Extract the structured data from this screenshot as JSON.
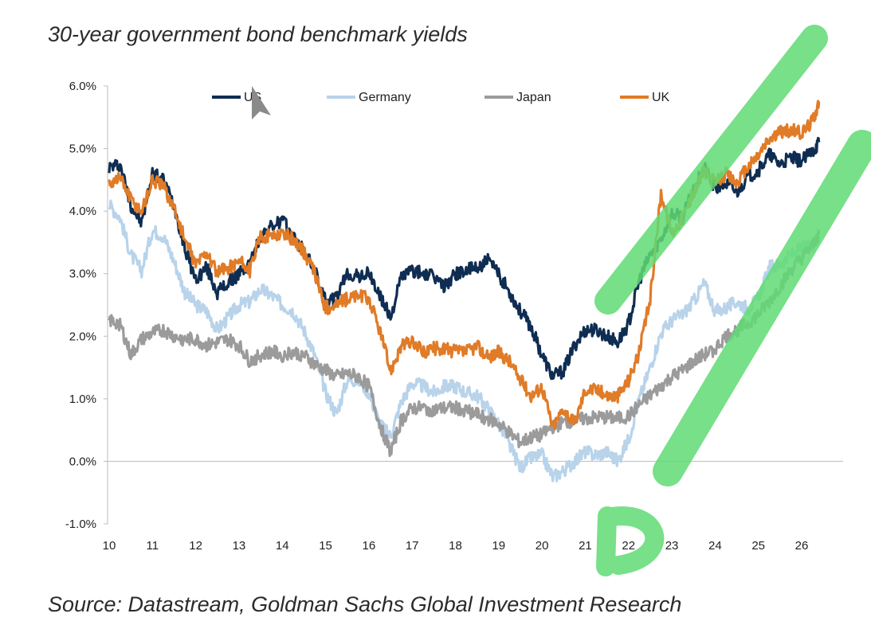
{
  "title": "30-year government bond benchmark yields",
  "source": "Source: Datastream, Goldman Sachs Global Investment Research",
  "chart_data": {
    "type": "line",
    "title": "30-year government bond benchmark yields",
    "xlabel": "",
    "ylabel": "",
    "xlim": [
      10,
      26.6
    ],
    "ylim": [
      -1.0,
      6.0
    ],
    "x_ticks": [
      "10",
      "11",
      "12",
      "13",
      "14",
      "15",
      "16",
      "17",
      "18",
      "19",
      "20",
      "21",
      "22",
      "23",
      "24",
      "25",
      "26"
    ],
    "y_ticks": [
      "6.0%",
      "5.0%",
      "4.0%",
      "3.0%",
      "2.0%",
      "1.0%",
      "0.0%",
      "-1.0%"
    ],
    "y_tick_values": [
      6,
      5,
      4,
      3,
      2,
      1,
      0,
      -1
    ],
    "grid": false,
    "legend_position": "top",
    "series": [
      {
        "name": "US",
        "color": "#0f2d52",
        "points": [
          [
            10,
            4.7
          ],
          [
            10.25,
            4.75
          ],
          [
            10.5,
            4.1
          ],
          [
            10.75,
            3.8
          ],
          [
            11,
            4.6
          ],
          [
            11.25,
            4.5
          ],
          [
            11.5,
            4.1
          ],
          [
            11.75,
            3.4
          ],
          [
            12,
            2.9
          ],
          [
            12.25,
            3.1
          ],
          [
            12.5,
            2.7
          ],
          [
            12.75,
            2.85
          ],
          [
            13,
            3.0
          ],
          [
            13.25,
            3.15
          ],
          [
            13.5,
            3.6
          ],
          [
            13.75,
            3.75
          ],
          [
            14,
            3.85
          ],
          [
            14.25,
            3.6
          ],
          [
            14.5,
            3.35
          ],
          [
            14.75,
            3.05
          ],
          [
            15,
            2.55
          ],
          [
            15.25,
            2.6
          ],
          [
            15.5,
            3.0
          ],
          [
            15.75,
            2.95
          ],
          [
            16,
            3.0
          ],
          [
            16.25,
            2.65
          ],
          [
            16.5,
            2.3
          ],
          [
            16.75,
            2.95
          ],
          [
            17,
            3.05
          ],
          [
            17.25,
            3.0
          ],
          [
            17.5,
            2.95
          ],
          [
            17.75,
            2.8
          ],
          [
            18,
            3.0
          ],
          [
            18.25,
            3.05
          ],
          [
            18.5,
            3.1
          ],
          [
            18.75,
            3.2
          ],
          [
            19,
            3.0
          ],
          [
            19.25,
            2.7
          ],
          [
            19.5,
            2.4
          ],
          [
            19.75,
            2.15
          ],
          [
            20,
            1.7
          ],
          [
            20.25,
            1.35
          ],
          [
            20.5,
            1.45
          ],
          [
            20.75,
            1.85
          ],
          [
            21,
            2.1
          ],
          [
            21.25,
            2.1
          ],
          [
            21.5,
            2.0
          ],
          [
            21.75,
            1.9
          ],
          [
            22,
            2.2
          ],
          [
            22.25,
            2.9
          ],
          [
            22.5,
            3.3
          ],
          [
            22.75,
            3.55
          ],
          [
            23,
            3.95
          ],
          [
            23.25,
            3.9
          ],
          [
            23.5,
            4.35
          ],
          [
            23.75,
            4.7
          ],
          [
            24,
            4.35
          ],
          [
            24.25,
            4.45
          ],
          [
            24.5,
            4.3
          ],
          [
            24.75,
            4.55
          ],
          [
            25,
            4.65
          ],
          [
            25.25,
            4.9
          ],
          [
            25.5,
            4.75
          ],
          [
            25.75,
            4.85
          ],
          [
            26,
            4.8
          ],
          [
            26.25,
            4.95
          ],
          [
            26.4,
            5.1
          ]
        ]
      },
      {
        "name": "Germany",
        "color": "#b8d3ea",
        "points": [
          [
            10,
            4.1
          ],
          [
            10.25,
            3.9
          ],
          [
            10.5,
            3.3
          ],
          [
            10.75,
            3.05
          ],
          [
            11,
            3.7
          ],
          [
            11.25,
            3.6
          ],
          [
            11.5,
            3.2
          ],
          [
            11.75,
            2.7
          ],
          [
            12,
            2.5
          ],
          [
            12.25,
            2.4
          ],
          [
            12.5,
            2.1
          ],
          [
            12.75,
            2.3
          ],
          [
            13,
            2.5
          ],
          [
            13.25,
            2.55
          ],
          [
            13.5,
            2.75
          ],
          [
            13.75,
            2.65
          ],
          [
            14,
            2.5
          ],
          [
            14.25,
            2.4
          ],
          [
            14.5,
            2.1
          ],
          [
            14.75,
            1.7
          ],
          [
            15,
            1.1
          ],
          [
            15.25,
            0.75
          ],
          [
            15.5,
            1.3
          ],
          [
            15.75,
            1.3
          ],
          [
            16,
            1.1
          ],
          [
            16.25,
            0.6
          ],
          [
            16.5,
            0.4
          ],
          [
            16.75,
            0.95
          ],
          [
            17,
            1.25
          ],
          [
            17.25,
            1.2
          ],
          [
            17.5,
            1.1
          ],
          [
            17.75,
            1.2
          ],
          [
            18,
            1.2
          ],
          [
            18.25,
            1.1
          ],
          [
            18.5,
            1.05
          ],
          [
            18.75,
            0.85
          ],
          [
            19,
            0.6
          ],
          [
            19.25,
            0.25
          ],
          [
            19.5,
            -0.1
          ],
          [
            19.75,
            0.05
          ],
          [
            20,
            0.1
          ],
          [
            20.25,
            -0.25
          ],
          [
            20.5,
            -0.15
          ],
          [
            20.75,
            0.0
          ],
          [
            21,
            0.15
          ],
          [
            21.25,
            0.1
          ],
          [
            21.5,
            0.15
          ],
          [
            21.75,
            0.0
          ],
          [
            22,
            0.35
          ],
          [
            22.25,
            1.0
          ],
          [
            22.5,
            1.5
          ],
          [
            22.75,
            2.05
          ],
          [
            23,
            2.25
          ],
          [
            23.25,
            2.35
          ],
          [
            23.5,
            2.55
          ],
          [
            23.75,
            2.85
          ],
          [
            24,
            2.4
          ],
          [
            24.25,
            2.45
          ],
          [
            24.5,
            2.55
          ],
          [
            24.75,
            2.45
          ],
          [
            25,
            2.6
          ],
          [
            25.25,
            3.1
          ],
          [
            25.5,
            3.15
          ],
          [
            25.75,
            3.3
          ],
          [
            26,
            3.4
          ],
          [
            26.25,
            3.45
          ],
          [
            26.4,
            3.6
          ]
        ]
      },
      {
        "name": "Japan",
        "color": "#9b9b9b",
        "points": [
          [
            10,
            2.25
          ],
          [
            10.25,
            2.2
          ],
          [
            10.5,
            1.7
          ],
          [
            10.75,
            1.95
          ],
          [
            11,
            2.05
          ],
          [
            11.25,
            2.1
          ],
          [
            11.5,
            2.0
          ],
          [
            11.75,
            1.95
          ],
          [
            12,
            1.95
          ],
          [
            12.25,
            1.85
          ],
          [
            12.5,
            1.9
          ],
          [
            12.75,
            1.95
          ],
          [
            13,
            1.85
          ],
          [
            13.25,
            1.6
          ],
          [
            13.5,
            1.7
          ],
          [
            13.75,
            1.75
          ],
          [
            14,
            1.7
          ],
          [
            14.25,
            1.75
          ],
          [
            14.5,
            1.7
          ],
          [
            14.75,
            1.55
          ],
          [
            15,
            1.45
          ],
          [
            15.25,
            1.35
          ],
          [
            15.5,
            1.4
          ],
          [
            15.75,
            1.35
          ],
          [
            16,
            1.2
          ],
          [
            16.25,
            0.6
          ],
          [
            16.5,
            0.15
          ],
          [
            16.75,
            0.65
          ],
          [
            17,
            0.85
          ],
          [
            17.25,
            0.85
          ],
          [
            17.5,
            0.82
          ],
          [
            17.75,
            0.85
          ],
          [
            18,
            0.85
          ],
          [
            18.25,
            0.82
          ],
          [
            18.5,
            0.75
          ],
          [
            18.75,
            0.68
          ],
          [
            19,
            0.6
          ],
          [
            19.25,
            0.45
          ],
          [
            19.5,
            0.3
          ],
          [
            19.75,
            0.38
          ],
          [
            20,
            0.42
          ],
          [
            20.25,
            0.55
          ],
          [
            20.5,
            0.62
          ],
          [
            20.75,
            0.65
          ],
          [
            21,
            0.68
          ],
          [
            21.25,
            0.7
          ],
          [
            21.5,
            0.7
          ],
          [
            21.75,
            0.68
          ],
          [
            22,
            0.72
          ],
          [
            22.25,
            0.9
          ],
          [
            22.5,
            1.05
          ],
          [
            22.75,
            1.2
          ],
          [
            23,
            1.35
          ],
          [
            23.25,
            1.45
          ],
          [
            23.5,
            1.6
          ],
          [
            23.75,
            1.7
          ],
          [
            24,
            1.8
          ],
          [
            24.25,
            2.0
          ],
          [
            24.5,
            2.1
          ],
          [
            24.75,
            2.2
          ],
          [
            25,
            2.35
          ],
          [
            25.25,
            2.55
          ],
          [
            25.5,
            2.8
          ],
          [
            25.75,
            3.05
          ],
          [
            26,
            3.25
          ],
          [
            26.25,
            3.45
          ],
          [
            26.4,
            3.65
          ]
        ]
      },
      {
        "name": "UK",
        "color": "#e07b27",
        "points": [
          [
            10,
            4.45
          ],
          [
            10.25,
            4.55
          ],
          [
            10.5,
            4.2
          ],
          [
            10.75,
            4.0
          ],
          [
            11,
            4.5
          ],
          [
            11.25,
            4.4
          ],
          [
            11.5,
            4.05
          ],
          [
            11.75,
            3.55
          ],
          [
            12,
            3.15
          ],
          [
            12.25,
            3.35
          ],
          [
            12.5,
            3.0
          ],
          [
            12.75,
            3.1
          ],
          [
            13,
            3.2
          ],
          [
            13.25,
            3.05
          ],
          [
            13.5,
            3.6
          ],
          [
            13.75,
            3.6
          ],
          [
            14,
            3.65
          ],
          [
            14.25,
            3.55
          ],
          [
            14.5,
            3.35
          ],
          [
            14.75,
            3.0
          ],
          [
            15,
            2.45
          ],
          [
            15.25,
            2.5
          ],
          [
            15.5,
            2.6
          ],
          [
            15.75,
            2.65
          ],
          [
            16,
            2.6
          ],
          [
            16.25,
            2.1
          ],
          [
            16.5,
            1.45
          ],
          [
            16.75,
            1.85
          ],
          [
            17,
            1.9
          ],
          [
            17.25,
            1.75
          ],
          [
            17.5,
            1.8
          ],
          [
            17.75,
            1.8
          ],
          [
            18,
            1.75
          ],
          [
            18.25,
            1.75
          ],
          [
            18.5,
            1.85
          ],
          [
            18.75,
            1.65
          ],
          [
            19,
            1.75
          ],
          [
            19.25,
            1.6
          ],
          [
            19.5,
            1.3
          ],
          [
            19.75,
            1.05
          ],
          [
            20,
            1.2
          ],
          [
            20.25,
            0.55
          ],
          [
            20.5,
            0.85
          ],
          [
            20.75,
            0.6
          ],
          [
            21,
            1.15
          ],
          [
            21.25,
            1.15
          ],
          [
            21.5,
            1.05
          ],
          [
            21.75,
            1.05
          ],
          [
            22,
            1.3
          ],
          [
            22.25,
            1.75
          ],
          [
            22.5,
            2.6
          ],
          [
            22.75,
            4.3
          ],
          [
            23,
            3.65
          ],
          [
            23.25,
            3.9
          ],
          [
            23.5,
            4.3
          ],
          [
            23.75,
            4.65
          ],
          [
            24,
            4.45
          ],
          [
            24.25,
            4.6
          ],
          [
            24.5,
            4.45
          ],
          [
            24.75,
            4.7
          ],
          [
            25,
            4.9
          ],
          [
            25.25,
            5.15
          ],
          [
            25.5,
            5.25
          ],
          [
            25.75,
            5.3
          ],
          [
            26,
            5.25
          ],
          [
            26.25,
            5.45
          ],
          [
            26.4,
            5.75
          ]
        ]
      }
    ]
  }
}
